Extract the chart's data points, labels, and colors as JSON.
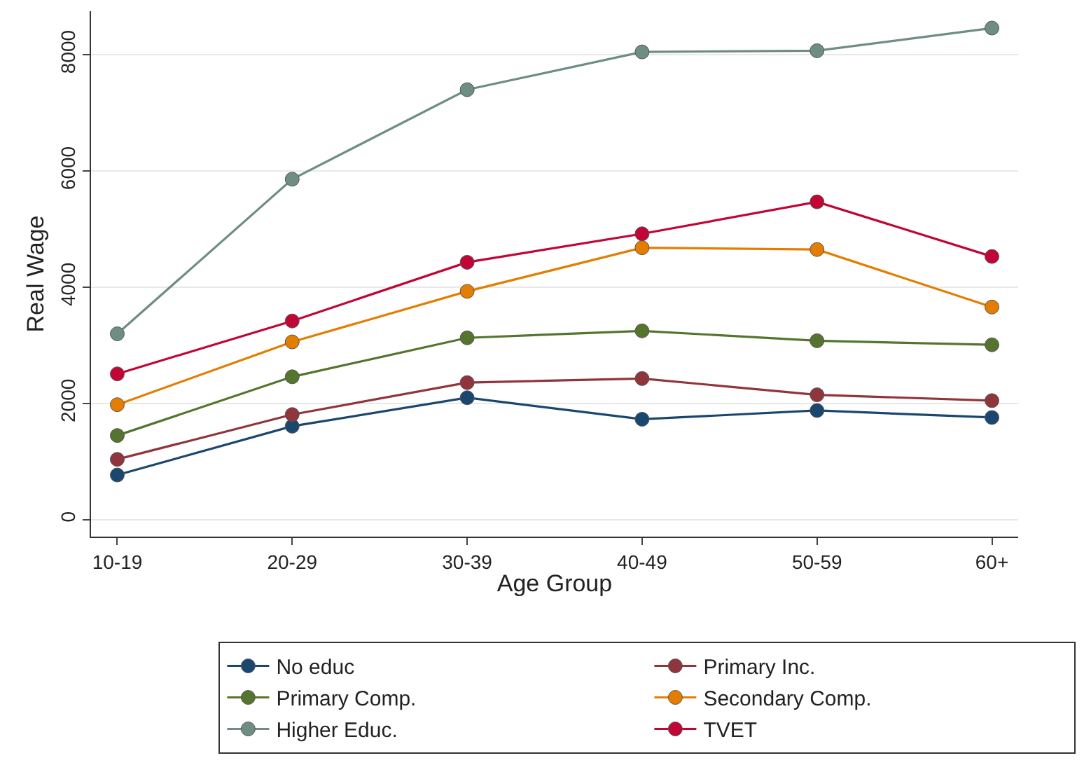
{
  "chart_data": {
    "type": "line",
    "xlabel": "Age Group",
    "ylabel": "Real Wage",
    "categories": [
      "10-19",
      "20-29",
      "30-39",
      "40-49",
      "50-59",
      "60+"
    ],
    "series": [
      {
        "name": "No educ",
        "color": "#1a476f",
        "values": [
          770,
          1610,
          2100,
          1730,
          1880,
          1760
        ]
      },
      {
        "name": "Primary Inc.",
        "color": "#90353b",
        "values": [
          1040,
          1810,
          2360,
          2430,
          2150,
          2050
        ]
      },
      {
        "name": "Primary Comp.",
        "color": "#55752f",
        "values": [
          1450,
          2460,
          3130,
          3250,
          3080,
          3010
        ]
      },
      {
        "name": "Secondary Comp.",
        "color": "#e37e00",
        "values": [
          1980,
          3060,
          3930,
          4680,
          4650,
          3660
        ]
      },
      {
        "name": "Higher Educ.",
        "color": "#6e8e84",
        "values": [
          3200,
          5860,
          7400,
          8050,
          8070,
          8460
        ]
      },
      {
        "name": "TVET",
        "color": "#c10534",
        "values": [
          2510,
          3420,
          4430,
          4920,
          5470,
          4530
        ]
      }
    ],
    "ylim": [
      -290,
      8750
    ],
    "yticks": [
      0,
      2000,
      4000,
      6000,
      8000
    ],
    "grid": "y",
    "legend": "bottom",
    "marker": "circle",
    "line_style": "solid"
  }
}
